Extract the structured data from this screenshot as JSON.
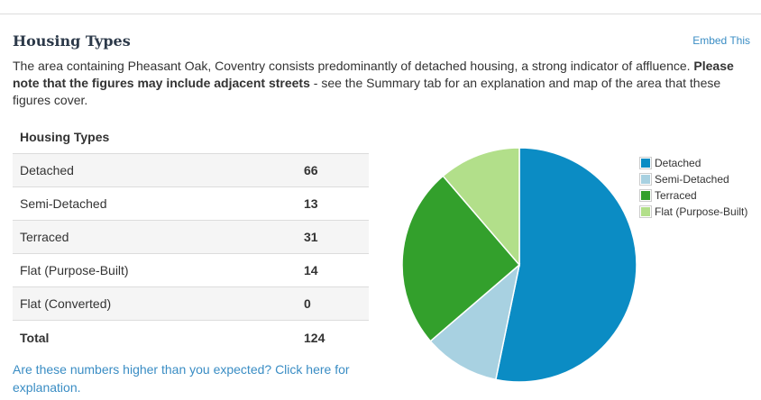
{
  "section": {
    "title": "Housing Types",
    "embed_label": "Embed This"
  },
  "intro": {
    "text_plain": "The area containing Pheasant Oak, Coventry consists predominantly of detached housing, a strong indicator of affluence. ",
    "text_bold": "Please note that the figures may include adjacent streets",
    "text_tail": " - see the Summary tab for an explanation and map of the area that these figures cover."
  },
  "table": {
    "header": "Housing Types",
    "rows": [
      {
        "label": "Detached",
        "value": "66"
      },
      {
        "label": "Semi-Detached",
        "value": "13"
      },
      {
        "label": "Terraced",
        "value": "31"
      },
      {
        "label": "Flat (Purpose-Built)",
        "value": "14"
      },
      {
        "label": "Flat (Converted)",
        "value": "0"
      }
    ],
    "total_label": "Total",
    "total_value": "124"
  },
  "explain_link": "Are these numbers higher than you expected? Click here for explanation.",
  "chart_data": {
    "type": "pie",
    "categories": [
      "Detached",
      "Semi-Detached",
      "Terraced",
      "Flat (Purpose-Built)"
    ],
    "values": [
      66,
      13,
      31,
      14
    ],
    "colors": [
      "#0b8cc4",
      "#a8d1e1",
      "#33a02c",
      "#b2df8a"
    ],
    "legend_position": "right"
  }
}
